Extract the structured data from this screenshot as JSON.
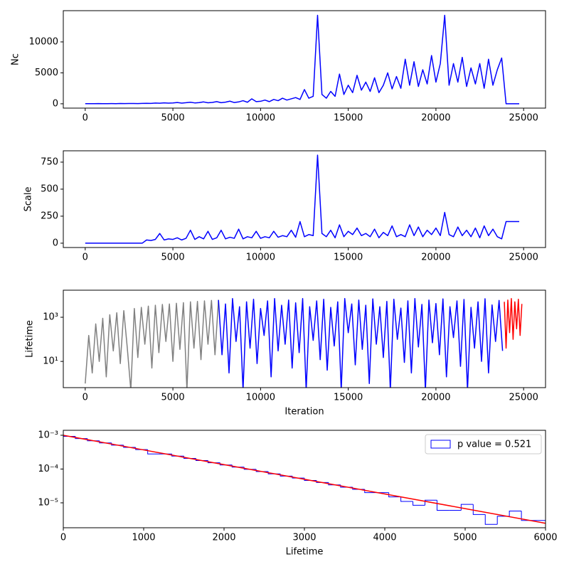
{
  "chart_data": [
    {
      "type": "line",
      "ylabel": "Nc",
      "xlim": [
        -1250,
        26250
      ],
      "xticks": [
        0,
        5000,
        10000,
        15000,
        20000,
        25000
      ],
      "ylim": [
        -700,
        15050
      ],
      "yticks": [
        0,
        5000,
        10000
      ],
      "series": [
        {
          "color": "blue",
          "x": [
            0,
            250,
            500,
            750,
            1000,
            1250,
            1500,
            1750,
            2000,
            2250,
            2500,
            2750,
            3000,
            3250,
            3500,
            3750,
            4000,
            4250,
            4500,
            4750,
            5000,
            5250,
            5500,
            5750,
            6000,
            6250,
            6500,
            6750,
            7000,
            7250,
            7500,
            7750,
            8000,
            8250,
            8500,
            8750,
            9000,
            9250,
            9500,
            9750,
            10000,
            10250,
            10500,
            10750,
            11000,
            11250,
            11500,
            11750,
            12000,
            12250,
            12500,
            12750,
            13000,
            13250,
            13500,
            13750,
            14000,
            14250,
            14500,
            14750,
            15000,
            15250,
            15500,
            15750,
            16000,
            16250,
            16500,
            16750,
            17000,
            17250,
            17500,
            17750,
            18000,
            18250,
            18500,
            18750,
            19000,
            19250,
            19500,
            19750,
            20000,
            20250,
            20500,
            20750,
            21000,
            21250,
            21500,
            21750,
            22000,
            22250,
            22500,
            22750,
            23000,
            23250,
            23500,
            23750,
            24000,
            24250,
            24500,
            24750
          ],
          "values": [
            20,
            20,
            20,
            30,
            20,
            25,
            30,
            20,
            40,
            30,
            50,
            40,
            30,
            60,
            80,
            60,
            120,
            90,
            150,
            100,
            130,
            200,
            110,
            170,
            250,
            140,
            190,
            300,
            160,
            220,
            350,
            180,
            260,
            420,
            200,
            300,
            500,
            250,
            800,
            350,
            400,
            600,
            350,
            700,
            500,
            900,
            600,
            800,
            1000,
            700,
            2300,
            900,
            1200,
            14300,
            1500,
            900,
            2000,
            1200,
            4800,
            1500,
            3000,
            1800,
            4600,
            2200,
            3500,
            2000,
            4200,
            1800,
            3000,
            5000,
            2400,
            4400,
            2500,
            7200,
            3000,
            6800,
            2800,
            5500,
            3200,
            7800,
            3500,
            6500,
            14300,
            3000,
            6500,
            3500,
            7500,
            2800,
            5800,
            3200,
            6500,
            2500,
            7200,
            3000,
            5500,
            7400,
            0,
            0,
            0,
            0
          ]
        }
      ]
    },
    {
      "type": "line",
      "ylabel": "Scale",
      "xlim": [
        -1250,
        26250
      ],
      "xticks": [
        0,
        5000,
        10000,
        15000,
        20000,
        25000
      ],
      "ylim": [
        -40,
        855
      ],
      "yticks": [
        0,
        250,
        500,
        750
      ],
      "series": [
        {
          "color": "blue",
          "x": [
            0,
            250,
            500,
            750,
            1000,
            1250,
            1500,
            1750,
            2000,
            2250,
            2500,
            2750,
            3000,
            3250,
            3500,
            3750,
            4000,
            4250,
            4500,
            4750,
            5000,
            5250,
            5500,
            5750,
            6000,
            6250,
            6500,
            6750,
            7000,
            7250,
            7500,
            7750,
            8000,
            8250,
            8500,
            8750,
            9000,
            9250,
            9500,
            9750,
            10000,
            10250,
            10500,
            10750,
            11000,
            11250,
            11500,
            11750,
            12000,
            12250,
            12500,
            12750,
            13000,
            13250,
            13500,
            13750,
            14000,
            14250,
            14500,
            14750,
            15000,
            15250,
            15500,
            15750,
            16000,
            16250,
            16500,
            16750,
            17000,
            17250,
            17500,
            17750,
            18000,
            18250,
            18500,
            18750,
            19000,
            19250,
            19500,
            19750,
            20000,
            20250,
            20500,
            20750,
            21000,
            21250,
            21500,
            21750,
            22000,
            22250,
            22500,
            22750,
            23000,
            23250,
            23500,
            23750,
            24000,
            24250,
            24500,
            24750
          ],
          "values": [
            0,
            0,
            0,
            0,
            0,
            0,
            0,
            0,
            0,
            0,
            0,
            0,
            0,
            0,
            30,
            25,
            35,
            90,
            30,
            40,
            35,
            50,
            30,
            45,
            120,
            35,
            60,
            40,
            110,
            35,
            50,
            120,
            40,
            55,
            45,
            130,
            40,
            60,
            50,
            110,
            45,
            60,
            50,
            110,
            55,
            70,
            60,
            120,
            55,
            200,
            60,
            80,
            70,
            815,
            90,
            60,
            120,
            50,
            170,
            60,
            110,
            80,
            140,
            70,
            90,
            60,
            130,
            50,
            100,
            70,
            160,
            60,
            80,
            60,
            170,
            70,
            150,
            60,
            120,
            80,
            140,
            70,
            285,
            80,
            60,
            150,
            70,
            120,
            60,
            140,
            50,
            160,
            70,
            130,
            60,
            40,
            200,
            200,
            200,
            200
          ]
        }
      ]
    },
    {
      "type": "line",
      "ylabel": "Lifetime",
      "xlabel": "Iteration",
      "xlim": [
        -1250,
        26250
      ],
      "xticks": [
        0,
        5000,
        10000,
        15000,
        20000,
        25000
      ],
      "yscale": "log",
      "ylim": [
        0.65,
        16800
      ],
      "yticks": [
        {
          "value": 10,
          "label": "10¹"
        },
        {
          "value": 1000,
          "label": "10³"
        }
      ],
      "series": [
        {
          "color": "gray",
          "x": [
            0,
            200,
            400,
            600,
            800,
            1000,
            1200,
            1400,
            1600,
            1800,
            2000,
            2200,
            2400,
            2600,
            2800,
            3000,
            3200,
            3400,
            3600,
            3800,
            4000,
            4200,
            4400,
            4600,
            4800,
            5000,
            5200,
            5400,
            5600,
            5800,
            6000,
            6200,
            6400,
            6600,
            6800,
            7000,
            7200,
            7400,
            7600
          ],
          "values": [
            1,
            150,
            3,
            500,
            10,
            900,
            2,
            1300,
            30,
            1600,
            8,
            2000,
            40,
            0.5,
            2500,
            15,
            2800,
            60,
            3200,
            5,
            3500,
            25,
            3800,
            80,
            4000,
            10,
            4300,
            35,
            4600,
            0.5,
            5000,
            40,
            5200,
            12,
            5500,
            60,
            5800,
            20,
            6200
          ]
        },
        {
          "color": "blue",
          "x": [
            7600,
            7800,
            8000,
            8200,
            8400,
            8600,
            8800,
            9000,
            9200,
            9400,
            9600,
            9800,
            10000,
            10200,
            10400,
            10600,
            10800,
            11000,
            11200,
            11400,
            11600,
            11800,
            12000,
            12200,
            12400,
            12600,
            12800,
            13000,
            13200,
            13400,
            13600,
            13800,
            14000,
            14200,
            14400,
            14600,
            14800,
            15000,
            15200,
            15400,
            15600,
            15800,
            16000,
            16200,
            16400,
            16600,
            16800,
            17000,
            17200,
            17400,
            17600,
            17800,
            18000,
            18200,
            18400,
            18600,
            18800,
            19000,
            19200,
            19400,
            19600,
            19800,
            20000,
            20200,
            20400,
            20600,
            20800,
            21000,
            21200,
            21400,
            21600,
            21800,
            22000,
            22200,
            22400,
            22600,
            22800,
            23000,
            23200,
            23400,
            23600,
            23800
          ],
          "values": [
            6000,
            20,
            4000,
            3,
            7000,
            80,
            3000,
            0.5,
            5000,
            40,
            6500,
            8,
            2500,
            150,
            5500,
            2,
            7000,
            30,
            3500,
            60,
            6000,
            5,
            4500,
            25,
            7000,
            0.5,
            3000,
            90,
            5500,
            12,
            6500,
            4,
            2800,
            50,
            5000,
            0.5,
            7000,
            200,
            4000,
            7,
            6000,
            35,
            3500,
            1,
            6800,
            60,
            3000,
            15,
            5200,
            0.5,
            6500,
            100,
            2600,
            9,
            5500,
            3,
            7000,
            45,
            3800,
            0.5,
            6000,
            70,
            4200,
            20,
            6800,
            2,
            3000,
            120,
            5500,
            6,
            6400,
            0.5,
            2800,
            40,
            5000,
            10,
            6900,
            3,
            3600,
            80,
            5800,
            30
          ]
        },
        {
          "color": "red",
          "x": [
            23900,
            24000,
            24100,
            24200,
            24300,
            24400,
            24500,
            24600,
            24700,
            24800,
            24900
          ],
          "values": [
            5000,
            40,
            6000,
            200,
            7000,
            100,
            5000,
            300,
            6500,
            150,
            4000
          ]
        }
      ]
    },
    {
      "type": "histogram",
      "xlabel": "Lifetime",
      "xlim": [
        0,
        6000
      ],
      "xticks": [
        0,
        1000,
        2000,
        3000,
        4000,
        5000,
        6000
      ],
      "yscale": "log",
      "ylim": [
        1.83e-06,
        0.0014
      ],
      "yticks": [
        {
          "value": 0.001,
          "label": "10⁻³"
        },
        {
          "value": 0.0001,
          "label": "10⁻⁴"
        },
        {
          "value": 1e-05,
          "label": "10⁻⁵"
        }
      ],
      "name": "p value = 0.521",
      "color": "blue",
      "legend": "upper right",
      "bins": [
        0,
        150,
        300,
        450,
        600,
        750,
        900,
        1050,
        1200,
        1350,
        1500,
        1650,
        1800,
        1950,
        2100,
        2250,
        2400,
        2550,
        2700,
        2850,
        3000,
        3150,
        3300,
        3450,
        3600,
        3750,
        3900,
        4050,
        4200,
        4350,
        4500,
        4650,
        4800,
        4950,
        5100,
        5250,
        5400,
        5550,
        5700,
        5850,
        6000
      ],
      "values": [
        0.00093,
        0.000798,
        0.000687,
        0.000592,
        0.000509,
        0.000438,
        0.000377,
        0.00028,
        0.000279,
        0.000241,
        0.000207,
        0.000178,
        0.000153,
        0.000132,
        0.000114,
        9.8e-05,
        8.4e-05,
        7.2e-05,
        6.2e-05,
        5.4e-05,
        4.6e-05,
        4e-05,
        3.4e-05,
        2.9e-05,
        2.5e-05,
        2e-05,
        2e-05,
        1.5e-05,
        1.1e-05,
        8.5e-06,
        1.2e-05,
        6e-06,
        6e-06,
        9e-06,
        4.5e-06,
        2.3e-06,
        4e-06,
        5.7e-06,
        3e-06,
        3e-06
      ],
      "fit": {
        "color": "red",
        "x": [
          0,
          1000,
          2000,
          3000,
          4000,
          5000,
          6000
        ],
        "values": [
          0.001,
          0.000368,
          0.000135,
          4.98e-05,
          1.83e-05,
          6.74e-06,
          2.48e-06
        ]
      }
    }
  ]
}
